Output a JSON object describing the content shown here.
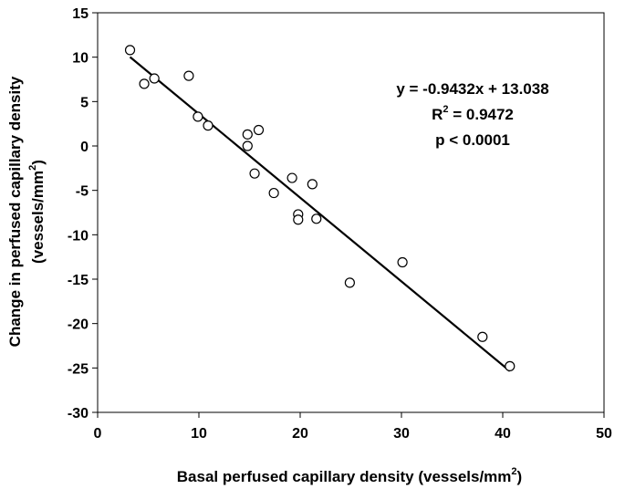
{
  "chart_data": {
    "type": "scatter",
    "xlim": [
      0,
      50
    ],
    "ylim": [
      -30,
      15
    ],
    "x_ticks": [
      0,
      10,
      20,
      30,
      40,
      50
    ],
    "y_ticks": [
      15,
      10,
      5,
      0,
      -5,
      -10,
      -15,
      -20,
      -25,
      -30
    ],
    "grid": false,
    "xlabel_parts": {
      "main": "Basal perfused capillary density (vessels/mm",
      "sup": "2",
      "tail": ")"
    },
    "ylabel_line1": "Change in perfused capillary density",
    "ylabel_line2_parts": {
      "main": "(vessels/mm",
      "sup": "2",
      "tail": ")"
    },
    "points": [
      {
        "x": 3.2,
        "y": 10.8
      },
      {
        "x": 4.6,
        "y": 7.0
      },
      {
        "x": 5.6,
        "y": 7.6
      },
      {
        "x": 9.0,
        "y": 7.9
      },
      {
        "x": 9.9,
        "y": 3.3
      },
      {
        "x": 10.9,
        "y": 2.3
      },
      {
        "x": 14.8,
        "y": 1.3
      },
      {
        "x": 14.8,
        "y": 0.0
      },
      {
        "x": 15.9,
        "y": 1.8
      },
      {
        "x": 15.5,
        "y": -3.1
      },
      {
        "x": 17.4,
        "y": -5.3
      },
      {
        "x": 19.2,
        "y": -3.6
      },
      {
        "x": 19.8,
        "y": -7.7
      },
      {
        "x": 19.8,
        "y": -8.3
      },
      {
        "x": 21.2,
        "y": -4.3
      },
      {
        "x": 21.6,
        "y": -8.2
      },
      {
        "x": 24.9,
        "y": -15.4
      },
      {
        "x": 30.1,
        "y": -13.1
      },
      {
        "x": 38.0,
        "y": -21.5
      },
      {
        "x": 40.7,
        "y": -24.8
      }
    ],
    "trendline": {
      "slope": -0.9432,
      "intercept": 13.038,
      "x_start": 3.2,
      "x_end": 40.7
    },
    "annotation": {
      "equation": "y = -0.9432x + 13.038",
      "r2_prefix": "R",
      "r2_sup": "2",
      "r2_value": " = 0.9472",
      "p_value": "p < 0.0001"
    }
  }
}
